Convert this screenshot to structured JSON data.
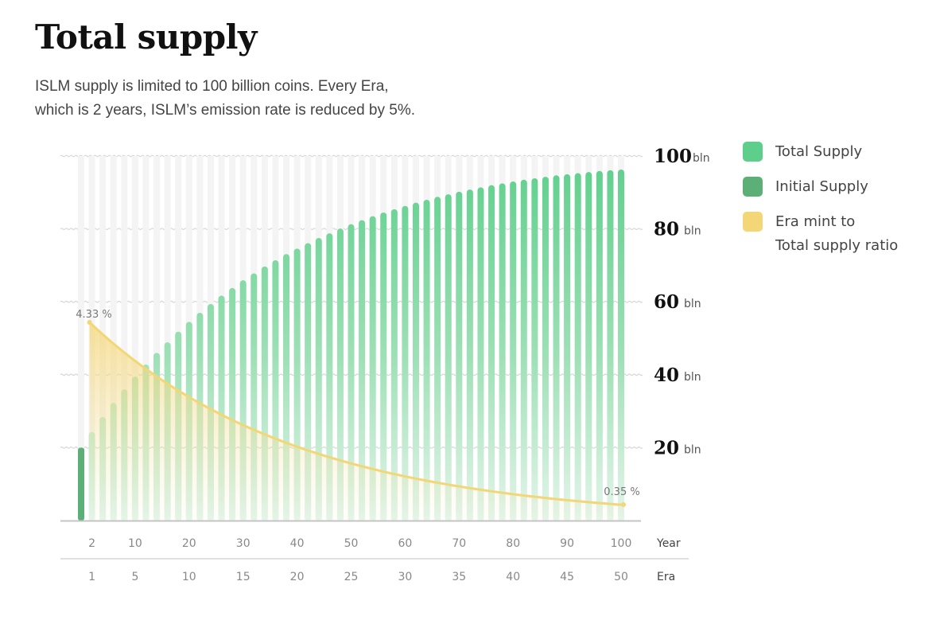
{
  "page": {
    "title": "Total supply",
    "subtitle_lines": [
      "ISLM supply is limited to 100 billion coins. Every Era,",
      "which is 2 years, ISLM’s emission rate is reduced by 5%."
    ]
  },
  "legend": {
    "items": [
      {
        "lines": [
          "Total Supply"
        ],
        "color": "#5dcf8b"
      },
      {
        "lines": [
          "Initial Supply"
        ],
        "color": "#5caf77"
      },
      {
        "lines": [
          "Era mint to",
          "Total supply ratio"
        ],
        "color": "#f3d675"
      }
    ]
  },
  "colors": {
    "total_supply": "#5dcf8b",
    "initial_supply": "#5caf77",
    "ratio": "#f3d675",
    "gridline": "#d6d6d6"
  },
  "chart_data": {
    "type": "bar",
    "ylim": [
      0,
      100
    ],
    "y_unit": "bln",
    "y_ticks": [
      20,
      40,
      60,
      80,
      100
    ],
    "x_axis_label": "Year",
    "x_ticks": [
      2,
      10,
      20,
      30,
      40,
      50,
      60,
      70,
      80,
      90,
      100
    ],
    "era_axis_label": "Era",
    "era_ticks": [
      1,
      5,
      10,
      15,
      20,
      25,
      30,
      35,
      40,
      45,
      50
    ],
    "initial_supply": {
      "name": "Initial Supply",
      "value": 20
    },
    "series": [
      {
        "name": "Total Supply",
        "x_era": [
          1,
          2,
          3,
          4,
          5,
          6,
          7,
          8,
          9,
          10,
          11,
          12,
          13,
          14,
          15,
          16,
          17,
          18,
          19,
          20,
          21,
          22,
          23,
          24,
          25,
          26,
          27,
          28,
          29,
          30,
          31,
          32,
          33,
          34,
          35,
          36,
          37,
          38,
          39,
          40,
          41,
          42,
          43,
          44,
          45,
          46,
          47,
          48,
          49,
          50
        ],
        "values": [
          24.3,
          28.4,
          32.3,
          36.0,
          39.5,
          42.8,
          46.0,
          48.9,
          51.8,
          54.5,
          57.0,
          59.4,
          61.7,
          63.8,
          65.9,
          67.8,
          69.7,
          71.4,
          73.1,
          74.6,
          76.1,
          77.5,
          78.8,
          80.1,
          81.3,
          82.4,
          83.5,
          84.5,
          85.4,
          86.3,
          87.2,
          88.0,
          88.8,
          89.5,
          90.2,
          90.8,
          91.4,
          92.0,
          92.5,
          93.0,
          93.5,
          93.9,
          94.3,
          94.7,
          95.0,
          95.3,
          95.6,
          95.9,
          96.1,
          96.3
        ]
      }
    ],
    "ratio_series": {
      "name": "Era mint to Total supply ratio",
      "start_label": "4.33 %",
      "end_label": "0.35 %",
      "start": 4.33,
      "end": 0.35,
      "decay_per_era": 0.95
    }
  }
}
